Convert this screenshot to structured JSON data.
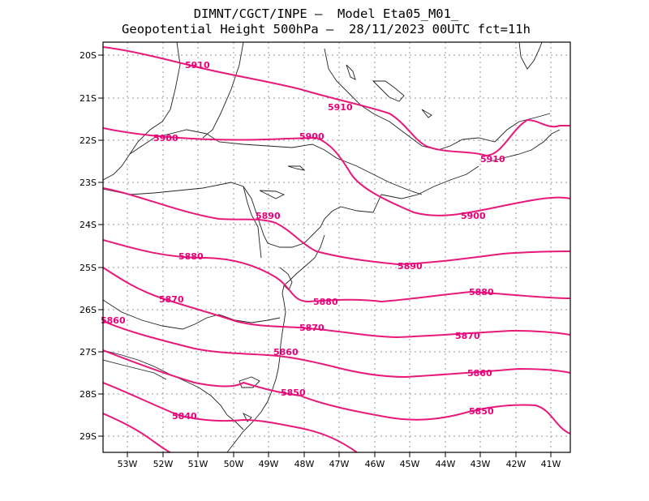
{
  "header": {
    "line1": "DIMNT/CGCT/INPE –  Model Eta05_M01_",
    "line2": "Geopotential Height 500hPa –  28/11/2023 00UTC fct=11h"
  },
  "map": {
    "lon_labels": [
      "53W",
      "52W",
      "51W",
      "50W",
      "49W",
      "48W",
      "47W",
      "46W",
      "45W",
      "44W",
      "43W",
      "42W",
      "41W"
    ],
    "lat_labels": [
      "20S",
      "21S",
      "22S",
      "23S",
      "24S",
      "25S",
      "26S",
      "27S",
      "28S",
      "29S"
    ],
    "contour_color": "#e8197a",
    "contour_labels": [
      "5910",
      "5910",
      "5910",
      "5900",
      "5900",
      "5900",
      "5890",
      "5890",
      "5880",
      "5880",
      "5880",
      "5870",
      "5870",
      "5870",
      "5860",
      "5860",
      "5860",
      "5850",
      "5850",
      "5840"
    ]
  }
}
